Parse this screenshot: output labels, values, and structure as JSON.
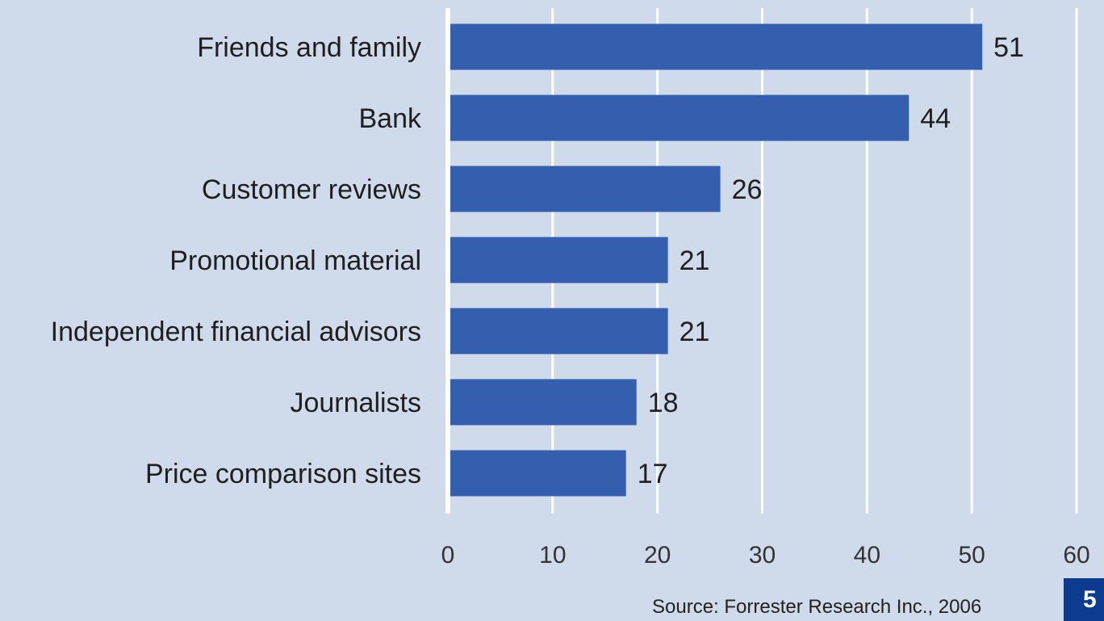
{
  "chart_data": {
    "type": "bar",
    "orientation": "horizontal",
    "categories": [
      "Friends and family",
      "Bank",
      "Customer reviews",
      "Promotional material",
      "Independent financial advisors",
      "Journalists",
      "Price comparison sites"
    ],
    "values": [
      51,
      44,
      26,
      21,
      21,
      18,
      17
    ],
    "data_labels": [
      "51",
      "44",
      "26",
      "21",
      "21",
      "18",
      "17"
    ],
    "xlim": [
      0,
      60
    ],
    "x_ticks": [
      "0",
      "10",
      "20",
      "30",
      "40",
      "50",
      "60"
    ],
    "grid": "vertical",
    "bar_color": "#345fae",
    "gridline_color": "#ffffff",
    "background_color": "#cfdbea",
    "title": "",
    "xlabel": "",
    "ylabel": ""
  },
  "source": "Source: Forrester Research Inc., 2006",
  "badge": "5"
}
